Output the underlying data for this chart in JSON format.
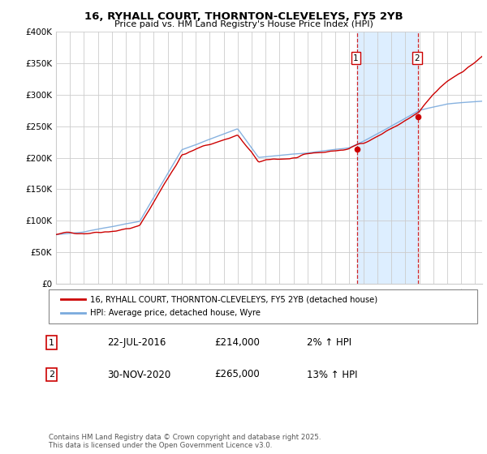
{
  "title_line1": "16, RYHALL COURT, THORNTON-CLEVELEYS, FY5 2YB",
  "title_line2": "Price paid vs. HM Land Registry's House Price Index (HPI)",
  "legend_line1": "16, RYHALL COURT, THORNTON-CLEVELEYS, FY5 2YB (detached house)",
  "legend_line2": "HPI: Average price, detached house, Wyre",
  "annotation1_date": "22-JUL-2016",
  "annotation1_price": "£214,000",
  "annotation1_hpi": "2% ↑ HPI",
  "annotation2_date": "30-NOV-2020",
  "annotation2_price": "£265,000",
  "annotation2_hpi": "13% ↑ HPI",
  "footer": "Contains HM Land Registry data © Crown copyright and database right 2025.\nThis data is licensed under the Open Government Licence v3.0.",
  "red_line_color": "#cc0000",
  "blue_line_color": "#7aaadd",
  "background_color": "#ffffff",
  "plot_bg_color": "#ffffff",
  "highlight_bg_color": "#ddeeff",
  "grid_color": "#cccccc",
  "sale1_x": 2016.55,
  "sale1_y": 214000,
  "sale2_x": 2020.92,
  "sale2_y": 265000,
  "xmin": 1995,
  "xmax": 2025.5,
  "ymin": 0,
  "ymax": 400000,
  "yticks": [
    0,
    50000,
    100000,
    150000,
    200000,
    250000,
    300000,
    350000,
    400000
  ]
}
